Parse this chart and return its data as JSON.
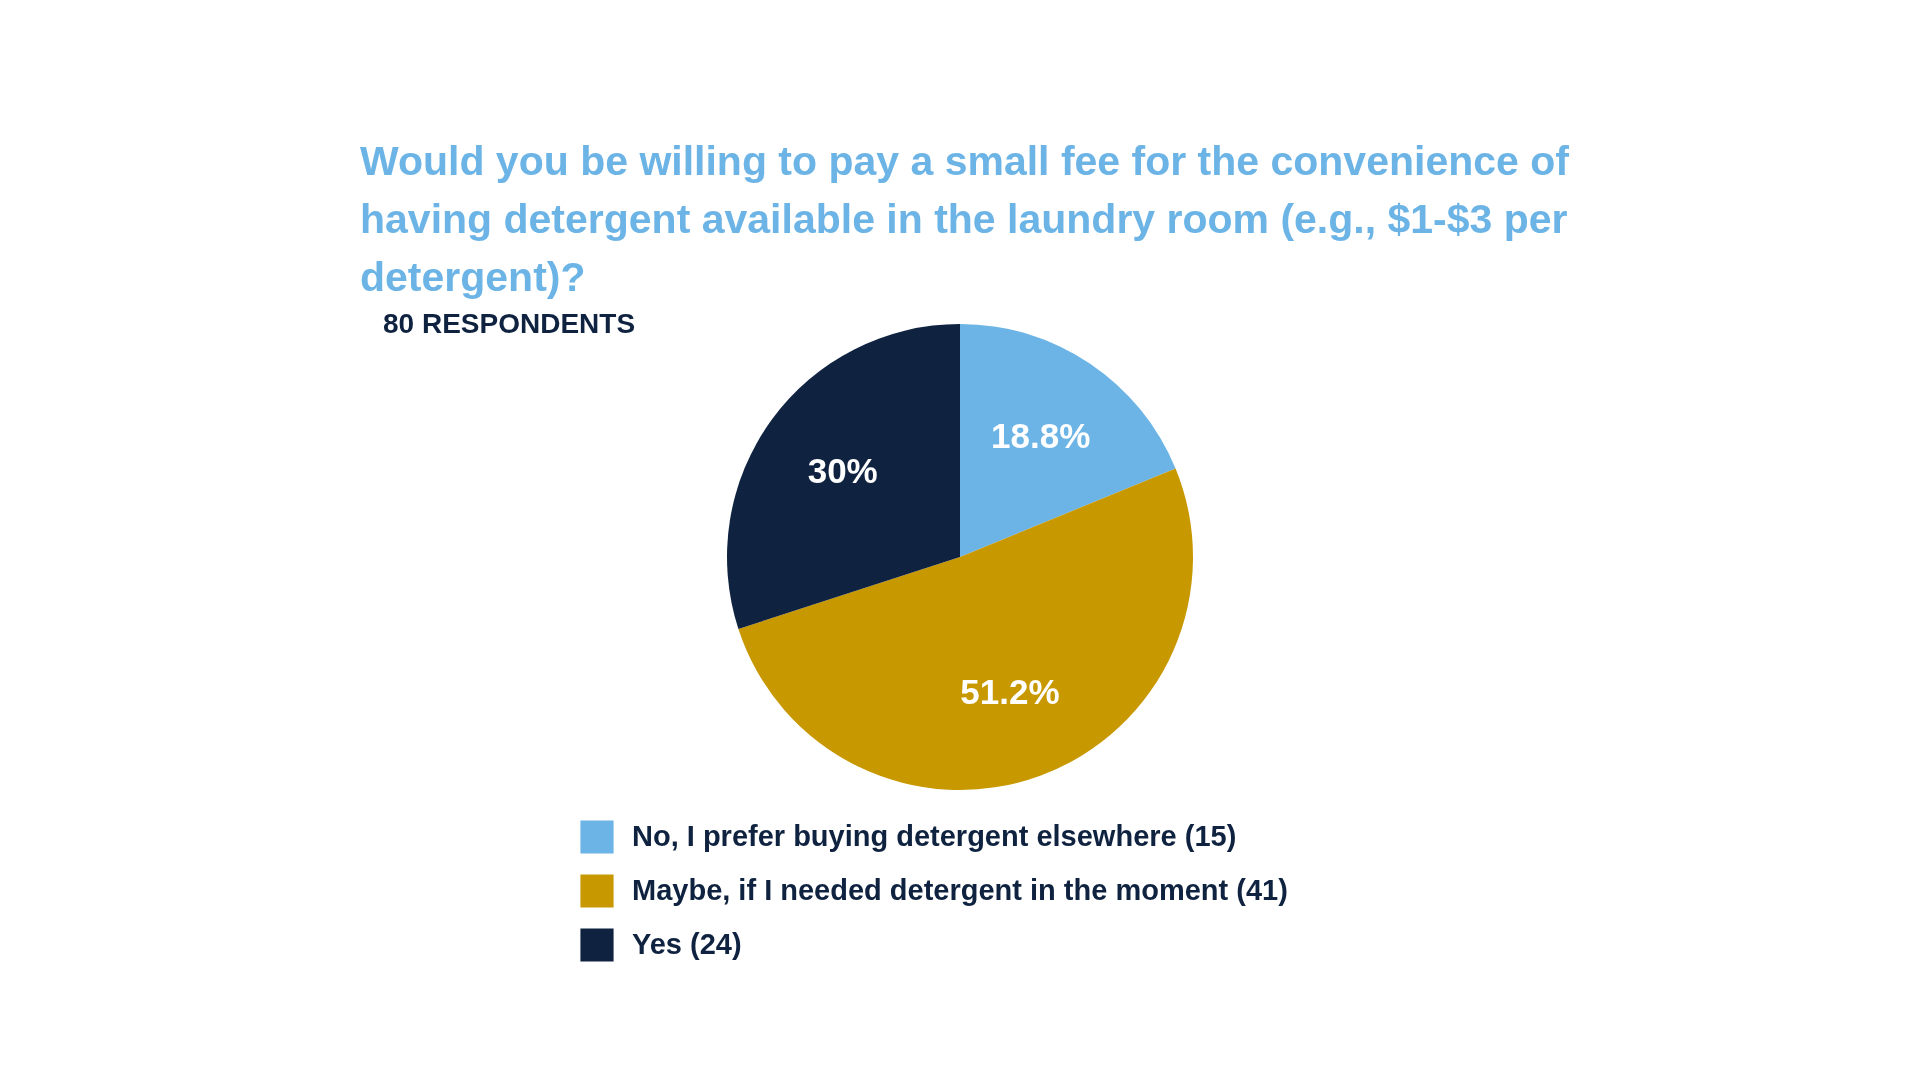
{
  "chart_data": {
    "type": "pie",
    "title": "Would you be willing to pay a small fee for the convenience of having detergent available in the laundry room (e.g., $1-$3 per detergent)?",
    "annotations": [
      "80 RESPONDENTS"
    ],
    "categories": [
      "No, I prefer buying detergent elsewhere (15)",
      "Maybe, if I needed detergent in the moment (41)",
      "Yes (24)"
    ],
    "values": [
      18.8,
      51.2,
      30
    ],
    "value_labels": [
      "18.8%",
      "51.2%",
      "30%"
    ],
    "colors": [
      "#6cb4e6",
      "#c89800",
      "#0f2340"
    ],
    "legend": "bottom"
  }
}
